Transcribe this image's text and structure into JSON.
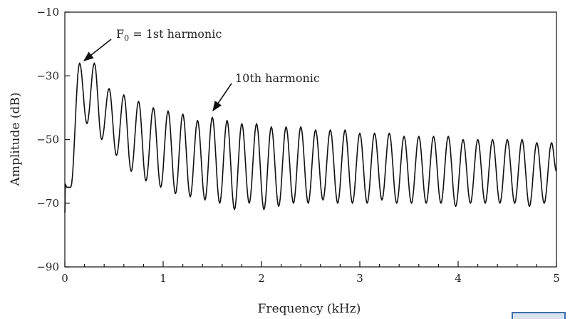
{
  "chart_data": {
    "type": "line",
    "title": "",
    "xlabel": "Frequency (kHz)",
    "ylabel": "Amplitude (dB)",
    "xlim": [
      0,
      5
    ],
    "ylim": [
      -90,
      -10
    ],
    "x_ticks": [
      "0",
      "1",
      "2",
      "3",
      "4",
      "5"
    ],
    "y_ticks": [
      "−10",
      "−30",
      "−50",
      "−70",
      "−90"
    ],
    "grid": false,
    "fundamental_khz": 0.15,
    "harmonic_peaks": {
      "x": [
        0.15,
        0.3,
        0.45,
        0.6,
        0.75,
        0.9,
        1.05,
        1.2,
        1.35,
        1.5,
        1.65,
        1.8,
        1.95,
        2.1,
        2.25,
        2.4,
        2.55,
        2.7,
        2.85,
        3.0,
        3.15,
        3.3,
        3.45,
        3.6,
        3.75,
        3.9,
        4.05,
        4.2,
        4.35,
        4.5,
        4.65,
        4.8,
        4.95
      ],
      "y": [
        -26,
        -26,
        -34,
        -36,
        -38,
        -40,
        -41,
        -42,
        -44,
        -43,
        -44,
        -45,
        -45,
        -46,
        -46,
        -46,
        -47,
        -47,
        -47,
        -48,
        -48,
        -48,
        -49,
        -49,
        -49,
        -49,
        -50,
        -50,
        -50,
        -50,
        -50,
        -51,
        -51
      ]
    },
    "valley_levels": {
      "x": [
        0.225,
        0.375,
        0.525,
        0.675,
        0.825,
        0.975,
        1.125,
        1.275,
        1.425,
        1.575,
        1.725,
        1.875,
        2.025,
        2.175,
        2.325,
        2.475,
        2.625,
        2.775,
        2.925,
        3.075,
        3.225,
        3.375,
        3.525,
        3.675,
        3.825,
        3.975,
        4.125,
        4.275,
        4.425,
        4.575,
        4.725,
        4.875
      ],
      "y": [
        -45,
        -50,
        -55,
        -60,
        -63,
        -65,
        -67,
        -68,
        -69,
        -70,
        -72,
        -70,
        -72,
        -71,
        -70,
        -70,
        -69,
        -70,
        -70,
        -70,
        -69,
        -70,
        -70,
        -70,
        -70,
        -71,
        -70,
        -70,
        -70,
        -70,
        -71,
        -70
      ]
    },
    "start_segment": {
      "x": [
        0,
        0.005,
        0.02,
        0.06
      ],
      "y": [
        -73,
        -64,
        -65,
        -65
      ]
    },
    "end_value": -60,
    "annotations": [
      {
        "text_prefix": "F",
        "subscript": "0",
        "text_suffix": " = 1st harmonic",
        "x": 0.15,
        "y": -26
      },
      {
        "text": "10th harmonic",
        "x": 1.5,
        "y": -43
      }
    ]
  },
  "colors": {
    "line": "#111111",
    "axis": "#111111",
    "text": "#222222",
    "widget_border": "#3d6fa8"
  }
}
